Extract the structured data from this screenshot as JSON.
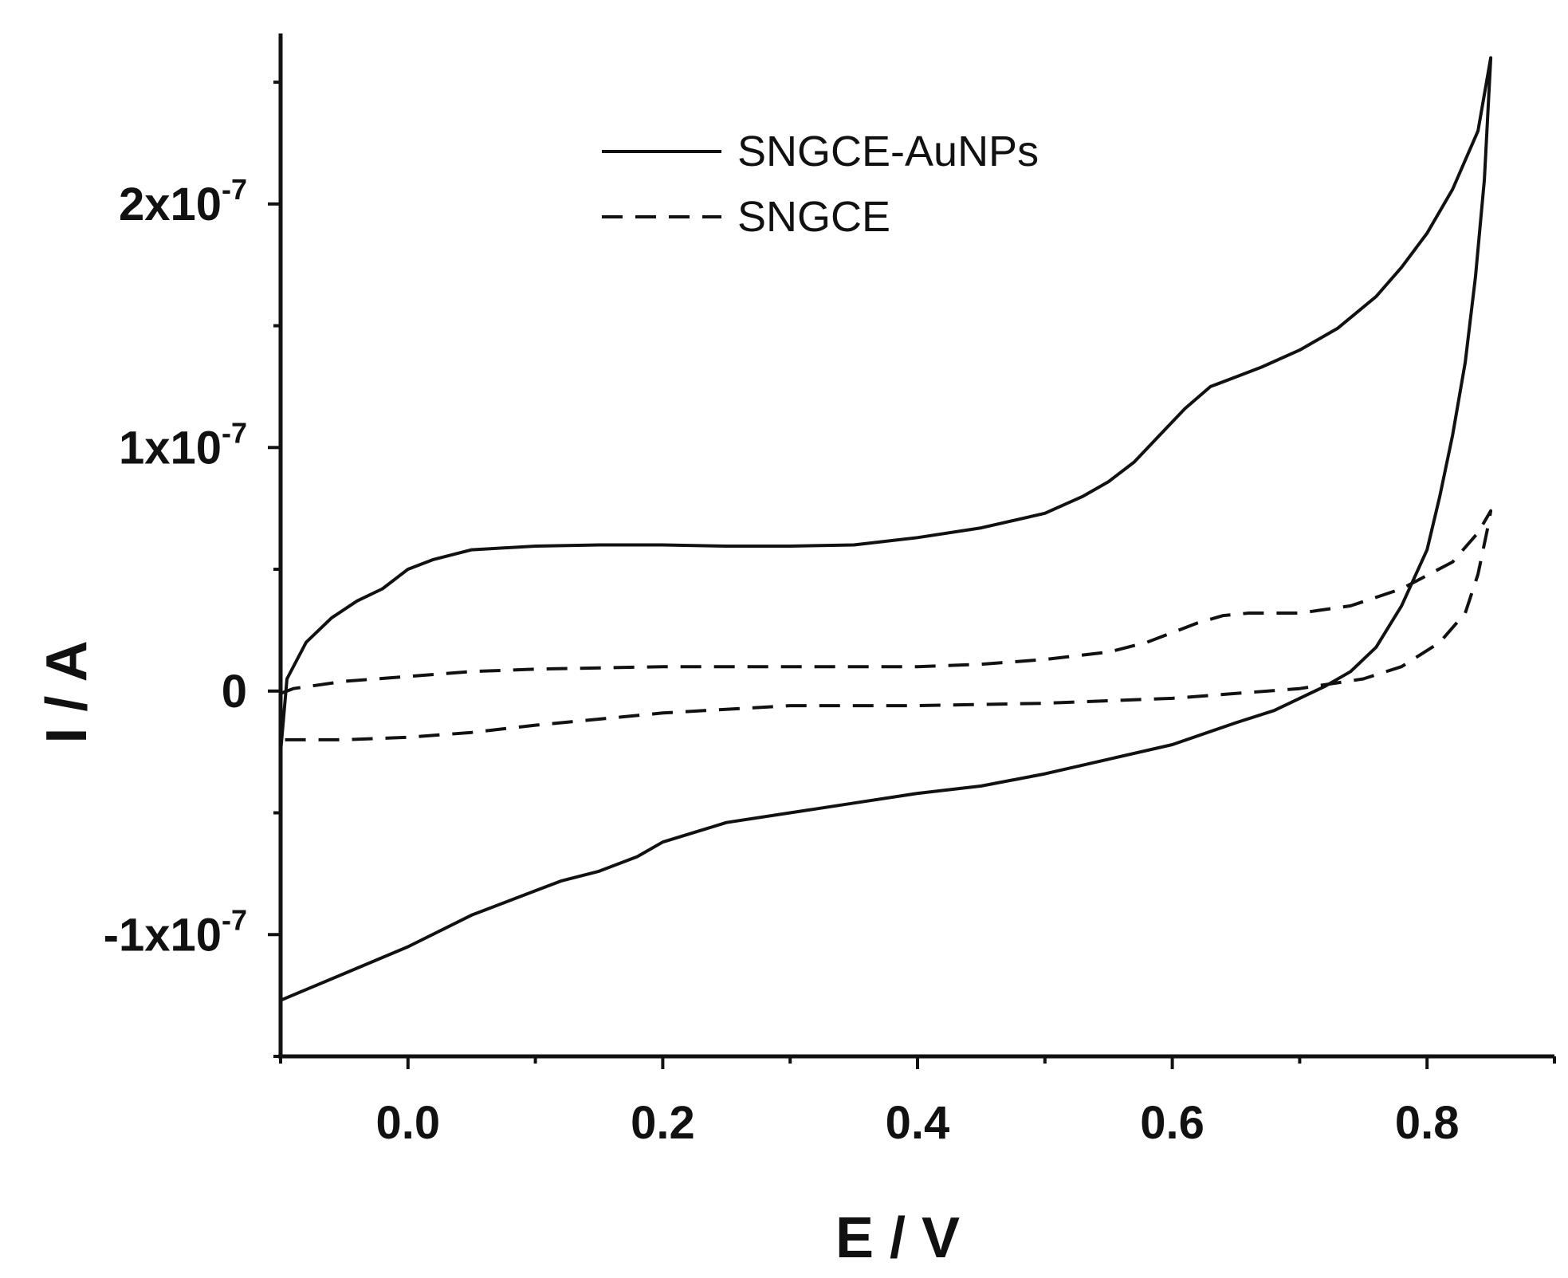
{
  "chart_data": {
    "type": "line",
    "title": "",
    "xlabel": "E / V",
    "ylabel": "I / A",
    "xlim": [
      -0.1,
      0.9
    ],
    "ylim": [
      -1.5e-07,
      2.7e-07
    ],
    "x_ticks": [
      {
        "value": 0.0,
        "label": "0.0"
      },
      {
        "value": 0.2,
        "label": "0.2"
      },
      {
        "value": 0.4,
        "label": "0.4"
      },
      {
        "value": 0.6,
        "label": "0.6"
      },
      {
        "value": 0.8,
        "label": "0.8"
      }
    ],
    "y_ticks": [
      {
        "value": 2e-07,
        "mantissa": "2x10",
        "exponent": "-7"
      },
      {
        "value": 1e-07,
        "mantissa": "1x10",
        "exponent": "-7"
      },
      {
        "value": 0,
        "mantissa": "0",
        "exponent": ""
      },
      {
        "value": -1e-07,
        "mantissa": "-1x10",
        "exponent": "-7"
      }
    ],
    "legend_position": "top-center",
    "series": [
      {
        "name": "SNGCE-AuNPs",
        "style": "solid",
        "color": "#111111",
        "points": [
          [
            -0.1,
            -2.5e-08
          ],
          [
            -0.095,
            5e-09
          ],
          [
            -0.08,
            2e-08
          ],
          [
            -0.06,
            3e-08
          ],
          [
            -0.04,
            3.7e-08
          ],
          [
            -0.02,
            4.2e-08
          ],
          [
            0.0,
            5e-08
          ],
          [
            0.02,
            5.4e-08
          ],
          [
            0.05,
            5.8e-08
          ],
          [
            0.1,
            5.95e-08
          ],
          [
            0.15,
            6e-08
          ],
          [
            0.2,
            6e-08
          ],
          [
            0.25,
            5.95e-08
          ],
          [
            0.3,
            5.95e-08
          ],
          [
            0.35,
            6e-08
          ],
          [
            0.4,
            6.3e-08
          ],
          [
            0.45,
            6.7e-08
          ],
          [
            0.5,
            7.3e-08
          ],
          [
            0.53,
            8e-08
          ],
          [
            0.55,
            8.6e-08
          ],
          [
            0.57,
            9.4e-08
          ],
          [
            0.59,
            1.05e-07
          ],
          [
            0.61,
            1.16e-07
          ],
          [
            0.63,
            1.25e-07
          ],
          [
            0.65,
            1.29e-07
          ],
          [
            0.67,
            1.33e-07
          ],
          [
            0.7,
            1.4e-07
          ],
          [
            0.73,
            1.49e-07
          ],
          [
            0.76,
            1.62e-07
          ],
          [
            0.78,
            1.74e-07
          ],
          [
            0.8,
            1.88e-07
          ],
          [
            0.82,
            2.06e-07
          ],
          [
            0.84,
            2.3e-07
          ],
          [
            0.85,
            2.6e-07
          ],
          [
            0.845,
            2.1e-07
          ],
          [
            0.838,
            1.7e-07
          ],
          [
            0.83,
            1.35e-07
          ],
          [
            0.82,
            1.05e-07
          ],
          [
            0.81,
            8e-08
          ],
          [
            0.8,
            5.8e-08
          ],
          [
            0.78,
            3.5e-08
          ],
          [
            0.76,
            1.8e-08
          ],
          [
            0.74,
            8e-09
          ],
          [
            0.72,
            2e-09
          ],
          [
            0.7,
            -3e-09
          ],
          [
            0.68,
            -8e-09
          ],
          [
            0.65,
            -1.3e-08
          ],
          [
            0.6,
            -2.2e-08
          ],
          [
            0.55,
            -2.8e-08
          ],
          [
            0.5,
            -3.4e-08
          ],
          [
            0.45,
            -3.9e-08
          ],
          [
            0.4,
            -4.2e-08
          ],
          [
            0.35,
            -4.6e-08
          ],
          [
            0.3,
            -5e-08
          ],
          [
            0.25,
            -5.4e-08
          ],
          [
            0.2,
            -6.2e-08
          ],
          [
            0.18,
            -6.8e-08
          ],
          [
            0.15,
            -7.4e-08
          ],
          [
            0.12,
            -7.8e-08
          ],
          [
            0.1,
            -8.2e-08
          ],
          [
            0.05,
            -9.2e-08
          ],
          [
            0.0,
            -1.05e-07
          ],
          [
            -0.05,
            -1.16e-07
          ],
          [
            -0.1,
            -1.27e-07
          ]
        ]
      },
      {
        "name": "SNGCE",
        "style": "dashed",
        "color": "#111111",
        "points": [
          [
            -0.1,
            -1e-09
          ],
          [
            -0.09,
            1e-09
          ],
          [
            -0.05,
            4e-09
          ],
          [
            0.0,
            6e-09
          ],
          [
            0.05,
            8e-09
          ],
          [
            0.1,
            9e-09
          ],
          [
            0.2,
            1e-08
          ],
          [
            0.3,
            1e-08
          ],
          [
            0.4,
            1e-08
          ],
          [
            0.45,
            1.1e-08
          ],
          [
            0.5,
            1.3e-08
          ],
          [
            0.55,
            1.6e-08
          ],
          [
            0.58,
            2e-08
          ],
          [
            0.6,
            2.4e-08
          ],
          [
            0.62,
            2.8e-08
          ],
          [
            0.64,
            3.1e-08
          ],
          [
            0.66,
            3.2e-08
          ],
          [
            0.7,
            3.2e-08
          ],
          [
            0.74,
            3.5e-08
          ],
          [
            0.78,
            4.2e-08
          ],
          [
            0.82,
            5.3e-08
          ],
          [
            0.84,
            6.5e-08
          ],
          [
            0.85,
            7.4e-08
          ],
          [
            0.848,
            6.8e-08
          ],
          [
            0.84,
            4.8e-08
          ],
          [
            0.83,
            3.2e-08
          ],
          [
            0.81,
            2e-08
          ],
          [
            0.78,
            1e-08
          ],
          [
            0.75,
            5e-09
          ],
          [
            0.7,
            1e-09
          ],
          [
            0.65,
            -1e-09
          ],
          [
            0.6,
            -3e-09
          ],
          [
            0.5,
            -5e-09
          ],
          [
            0.4,
            -6e-09
          ],
          [
            0.3,
            -6e-09
          ],
          [
            0.2,
            -9e-09
          ],
          [
            0.1,
            -1.4e-08
          ],
          [
            0.05,
            -1.7e-08
          ],
          [
            0.0,
            -1.9e-08
          ],
          [
            -0.05,
            -2e-08
          ],
          [
            -0.1,
            -2e-08
          ]
        ]
      }
    ]
  }
}
